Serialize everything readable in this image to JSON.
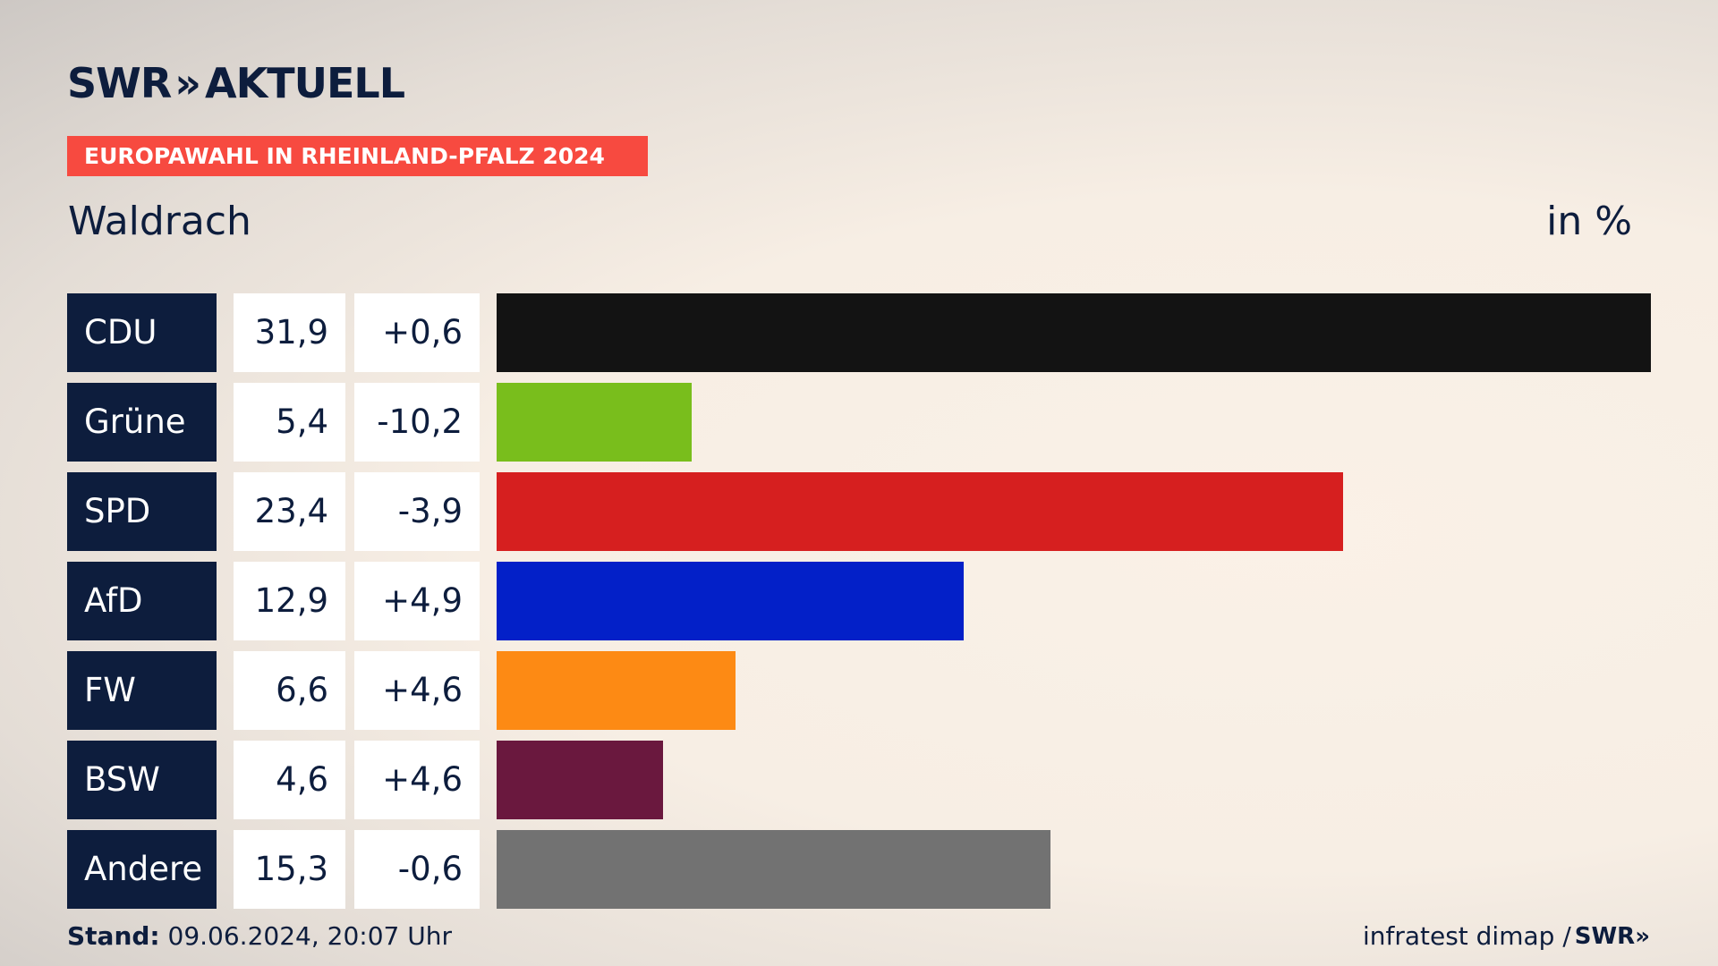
{
  "header": {
    "logo_swr": "SWR",
    "logo_chevrons": "»",
    "logo_aktuell": "AKTUELL",
    "banner": "EUROPAWAHL IN RHEINLAND-PFALZ 2024",
    "location": "Waldrach",
    "unit": "in %"
  },
  "chart_data": {
    "type": "bar",
    "orientation": "horizontal",
    "title": "EUROPAWAHL IN RHEINLAND-PFALZ 2024",
    "subtitle": "Waldrach",
    "unit": "in %",
    "categories": [
      "CDU",
      "Grüne",
      "SPD",
      "AfD",
      "FW",
      "BSW",
      "Andere"
    ],
    "values": [
      31.9,
      5.4,
      23.4,
      12.9,
      6.6,
      4.6,
      15.3
    ],
    "value_labels": [
      "31,9",
      "5,4",
      "23,4",
      "12,9",
      "6,6",
      "4,6",
      "15,3"
    ],
    "diff_labels": [
      "+0,6",
      "-10,2",
      "-3,9",
      "+4,9",
      "+4,6",
      "+4,6",
      "-0,6"
    ],
    "diffs": [
      0.6,
      -10.2,
      -3.9,
      4.9,
      4.6,
      4.6,
      -0.6
    ],
    "colors": [
      "#131313",
      "#79be1c",
      "#d61f1f",
      "#0320c8",
      "#fd8a14",
      "#6a183e",
      "#727272"
    ],
    "xlim": [
      0,
      31.9
    ]
  },
  "footer": {
    "stand_label": "Stand:",
    "stand_value": " 09.06.2024, 20:07 Uhr",
    "source": "infratest dimap / ",
    "source_logo": "SWR»"
  }
}
